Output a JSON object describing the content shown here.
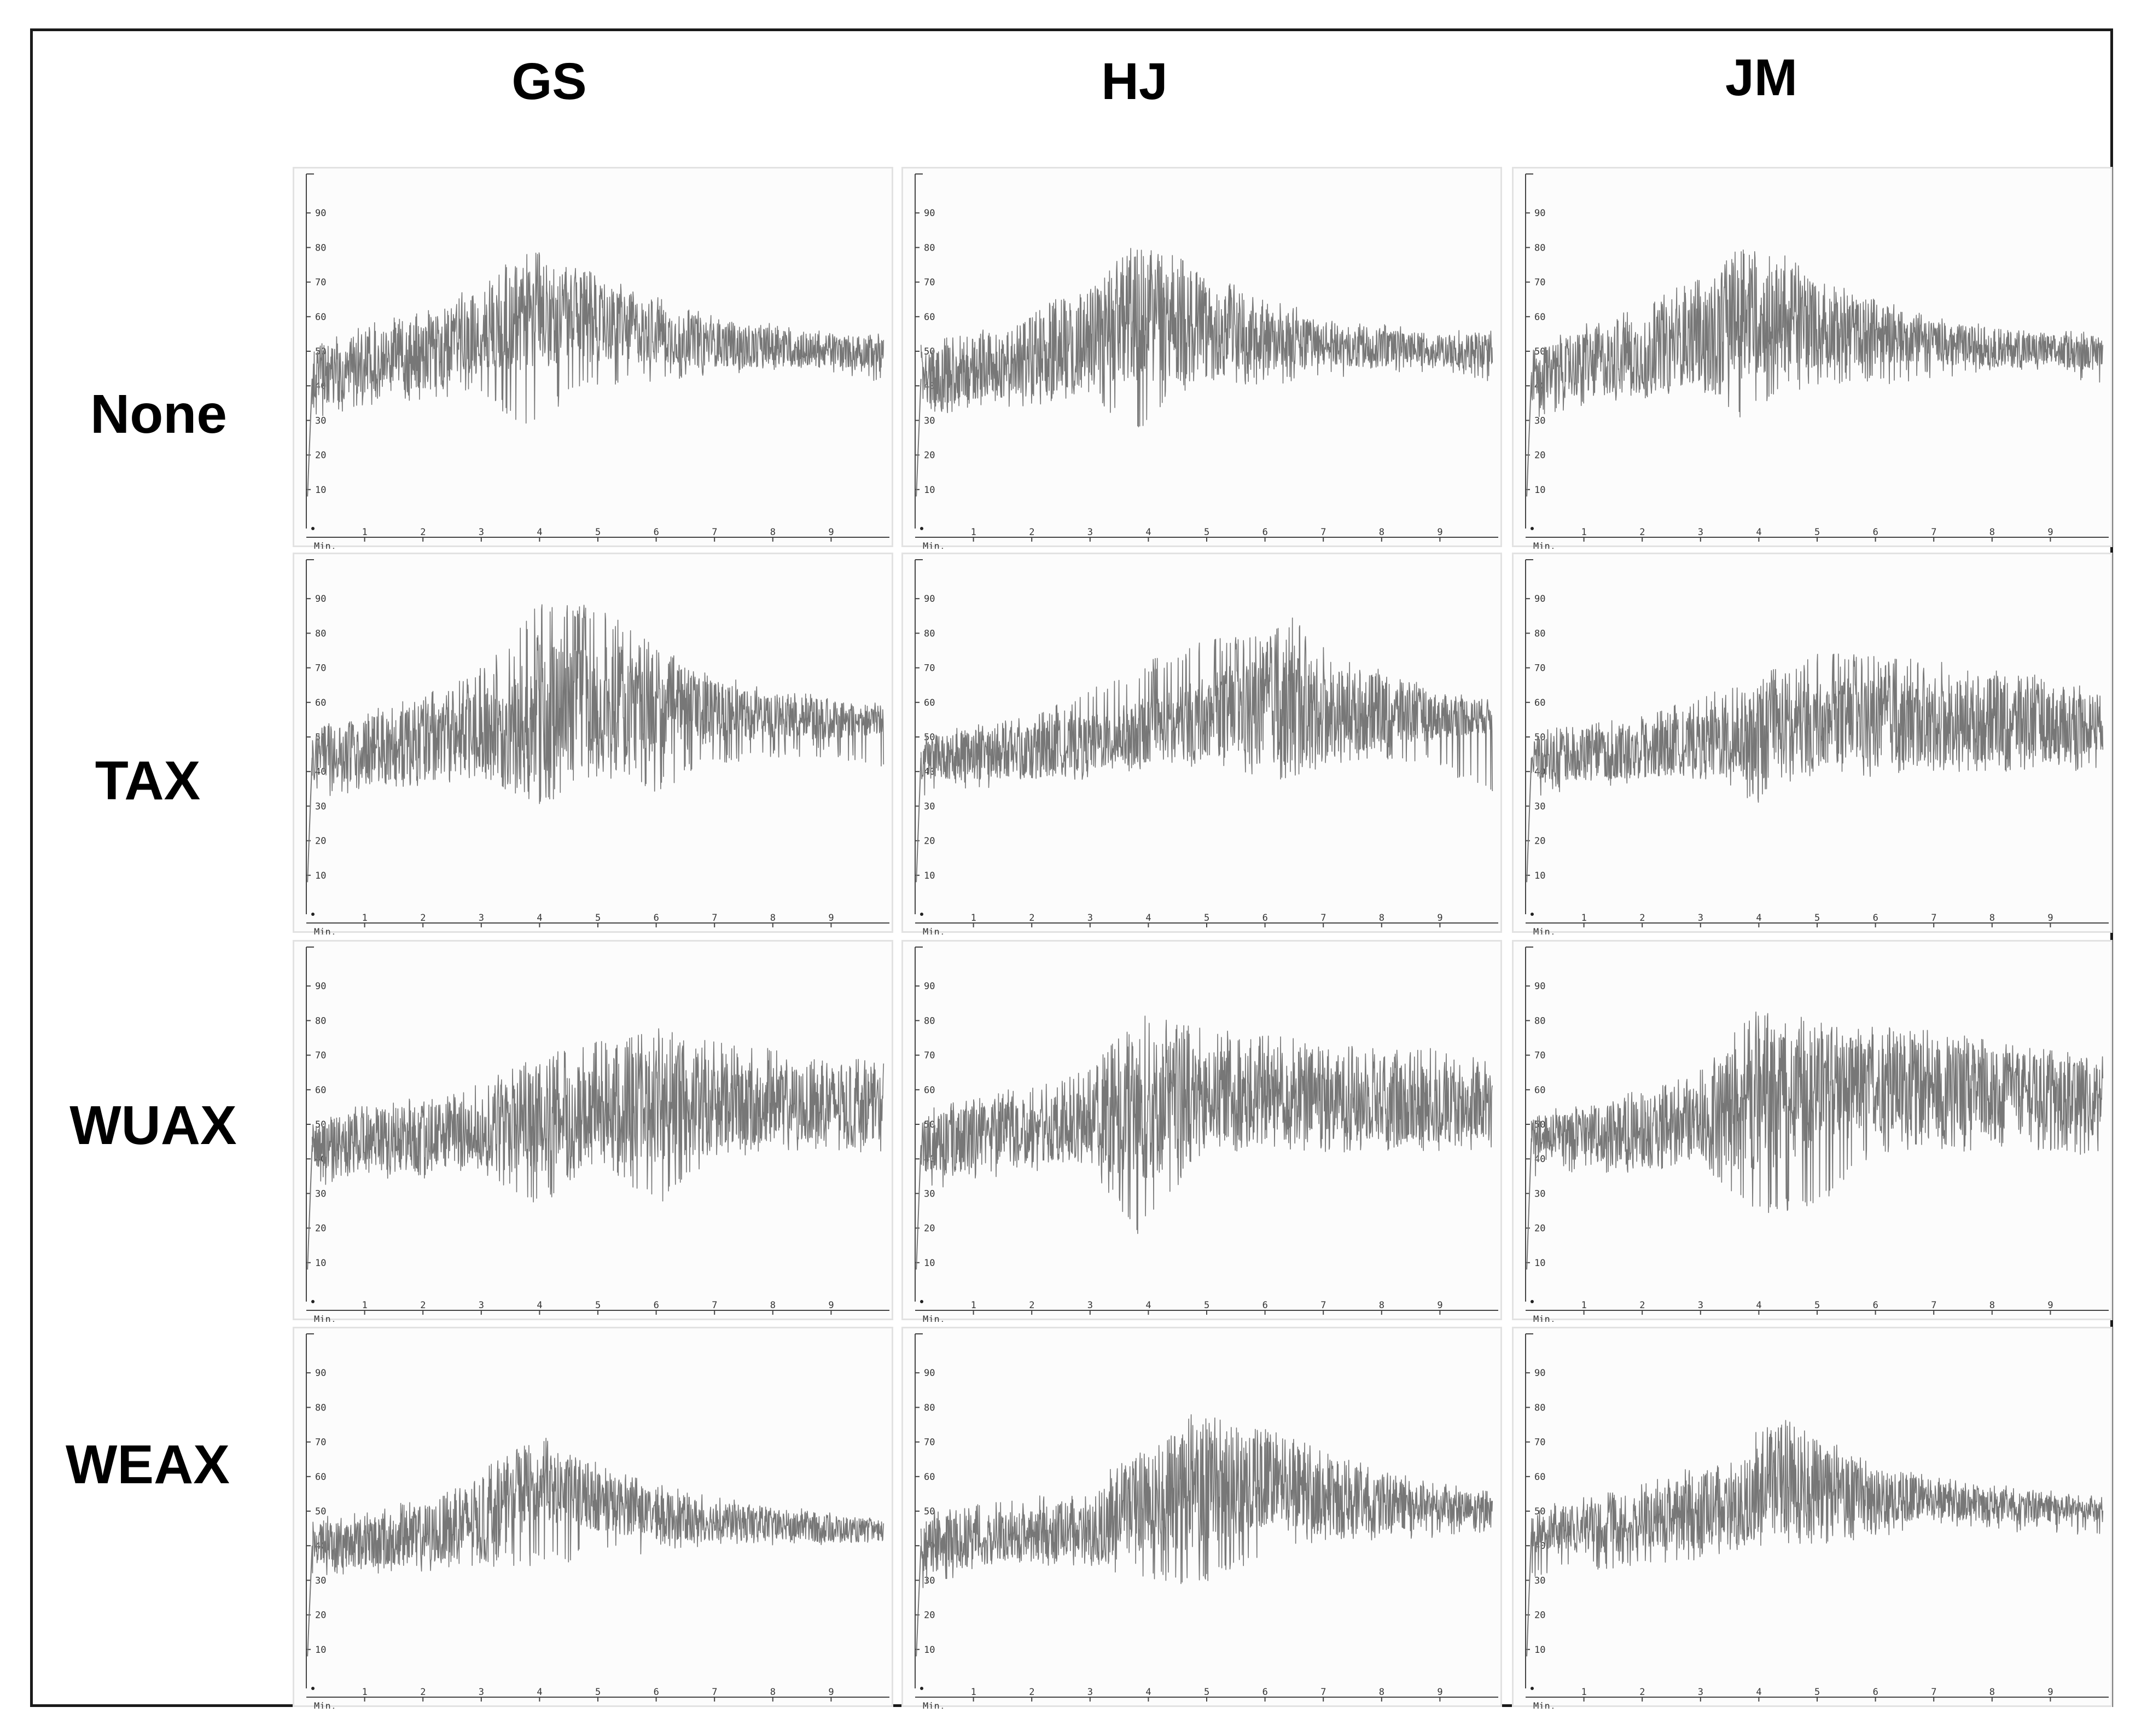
{
  "figure": {
    "columns": [
      "GS",
      "HJ",
      "JM"
    ],
    "rows": [
      "None",
      "TAX",
      "WUAX",
      "WEAX"
    ]
  },
  "chart_data": {
    "type": "line",
    "layout": "4x3 grid of small-multiple panels",
    "xunit_label": "Min.",
    "x_ticks": [
      1,
      2,
      3,
      4,
      5,
      6,
      7,
      8,
      9
    ],
    "y_ticks": [
      10,
      20,
      30,
      40,
      50,
      60,
      70,
      80,
      90
    ],
    "xlim": [
      0,
      10
    ],
    "ylim": [
      0,
      100
    ],
    "line_color": "#777777",
    "panels": [
      {
        "row": "None",
        "column": "GS",
        "x": [
          0.1,
          1,
          2,
          3,
          3.8,
          4.5,
          5,
          6,
          7,
          8,
          9,
          9.9
        ],
        "y_mid": [
          42,
          46,
          49,
          55,
          60,
          60,
          58,
          55,
          52,
          51,
          50,
          50
        ],
        "y_min": [
          30,
          34,
          36,
          38,
          26,
          36,
          40,
          40,
          42,
          44,
          44,
          40
        ],
        "y_max": [
          52,
          58,
          62,
          70,
          80,
          76,
          72,
          66,
          60,
          58,
          56,
          56
        ]
      },
      {
        "row": "None",
        "column": "HJ",
        "x": [
          0.1,
          1,
          2,
          3,
          3.7,
          4.5,
          5,
          6,
          7,
          8,
          9,
          9.9
        ],
        "y_mid": [
          42,
          45,
          48,
          53,
          58,
          58,
          57,
          54,
          52,
          51,
          50,
          50
        ],
        "y_min": [
          30,
          34,
          34,
          38,
          25,
          38,
          40,
          40,
          42,
          44,
          44,
          40
        ],
        "y_max": [
          52,
          56,
          62,
          70,
          80,
          78,
          72,
          66,
          60,
          58,
          56,
          56
        ]
      },
      {
        "row": "None",
        "column": "JM",
        "x": [
          0.1,
          1,
          2,
          3,
          3.7,
          4.5,
          5,
          6,
          7,
          8,
          9,
          9.9
        ],
        "y_mid": [
          43,
          46,
          49,
          54,
          59,
          59,
          57,
          55,
          53,
          51,
          50,
          50
        ],
        "y_min": [
          30,
          34,
          35,
          38,
          30,
          38,
          40,
          40,
          42,
          44,
          44,
          40
        ],
        "y_max": [
          52,
          58,
          63,
          72,
          80,
          78,
          72,
          66,
          60,
          58,
          56,
          56
        ]
      },
      {
        "row": "TAX",
        "column": "GS",
        "x": [
          0.1,
          1,
          2,
          3,
          4,
          5,
          6,
          7,
          8,
          9,
          9.9
        ],
        "y_mid": [
          44,
          46,
          49,
          53,
          58,
          59,
          58,
          57,
          56,
          55,
          55
        ],
        "y_min": [
          32,
          34,
          36,
          38,
          30,
          38,
          34,
          42,
          44,
          44,
          40
        ],
        "y_max": [
          52,
          58,
          62,
          70,
          89,
          88,
          76,
          68,
          64,
          62,
          60
        ]
      },
      {
        "row": "TAX",
        "column": "HJ",
        "x": [
          0.1,
          1,
          2,
          3,
          4,
          5,
          6,
          6.5,
          7,
          8,
          9,
          9.9
        ],
        "y_mid": [
          44,
          45,
          46,
          48,
          52,
          56,
          59,
          60,
          58,
          57,
          56,
          56
        ],
        "y_min": [
          32,
          35,
          36,
          38,
          40,
          42,
          38,
          36,
          42,
          44,
          40,
          34
        ],
        "y_max": [
          52,
          54,
          56,
          64,
          72,
          78,
          80,
          85,
          76,
          70,
          64,
          62
        ]
      },
      {
        "row": "TAX",
        "column": "JM",
        "x": [
          0.1,
          1,
          2,
          3,
          4,
          5,
          6,
          7,
          8,
          9,
          9.9
        ],
        "y_mid": [
          44,
          45,
          46,
          48,
          51,
          54,
          55,
          55,
          55,
          54,
          54
        ],
        "y_min": [
          32,
          36,
          36,
          38,
          30,
          40,
          38,
          40,
          40,
          40,
          40
        ],
        "y_max": [
          52,
          54,
          56,
          62,
          68,
          74,
          74,
          72,
          70,
          68,
          64
        ]
      },
      {
        "row": "WUAX",
        "column": "GS",
        "x": [
          0.1,
          1,
          2,
          3,
          4,
          5,
          6,
          7,
          8,
          9,
          9.9
        ],
        "y_mid": [
          44,
          45,
          46,
          48,
          51,
          54,
          56,
          56,
          56,
          56,
          56
        ],
        "y_min": [
          32,
          34,
          34,
          36,
          26,
          40,
          26,
          40,
          42,
          42,
          42
        ],
        "y_max": [
          52,
          56,
          58,
          62,
          70,
          74,
          78,
          74,
          72,
          70,
          68
        ]
      },
      {
        "row": "WUAX",
        "column": "HJ",
        "x": [
          0.1,
          1,
          2,
          3,
          3.8,
          5,
          6,
          7,
          8,
          9,
          9.9
        ],
        "y_mid": [
          44,
          46,
          48,
          50,
          54,
          58,
          59,
          58,
          57,
          56,
          55
        ],
        "y_min": [
          30,
          34,
          36,
          38,
          18,
          42,
          42,
          42,
          42,
          42,
          42
        ],
        "y_max": [
          54,
          58,
          62,
          66,
          82,
          78,
          76,
          74,
          72,
          72,
          68
        ]
      },
      {
        "row": "WUAX",
        "column": "JM",
        "x": [
          0.1,
          1,
          2,
          3,
          4,
          5,
          6,
          7,
          8,
          9,
          9.9
        ],
        "y_mid": [
          46,
          47,
          48,
          51,
          57,
          60,
          61,
          60,
          59,
          58,
          57
        ],
        "y_min": [
          32,
          36,
          36,
          38,
          24,
          26,
          42,
          42,
          42,
          42,
          40
        ],
        "y_max": [
          54,
          56,
          60,
          66,
          84,
          80,
          78,
          78,
          74,
          72,
          70
        ]
      },
      {
        "row": "WEAX",
        "column": "GS",
        "x": [
          0.1,
          1,
          2,
          3,
          4,
          5,
          6,
          7,
          8,
          9,
          9.9
        ],
        "y_mid": [
          40,
          41,
          43,
          48,
          58,
          53,
          49,
          47,
          46,
          45,
          44
        ],
        "y_min": [
          30,
          32,
          32,
          34,
          34,
          36,
          38,
          40,
          40,
          40,
          40
        ],
        "y_max": [
          48,
          50,
          54,
          62,
          72,
          64,
          58,
          54,
          52,
          50,
          48
        ]
      },
      {
        "row": "WEAX",
        "column": "HJ",
        "x": [
          0.1,
          1,
          2,
          3,
          4,
          4.8,
          6,
          7,
          8,
          9,
          9.9
        ],
        "y_mid": [
          40,
          42,
          43,
          46,
          52,
          56,
          58,
          54,
          52,
          51,
          50
        ],
        "y_min": [
          26,
          32,
          34,
          34,
          30,
          28,
          36,
          40,
          42,
          42,
          42
        ],
        "y_max": [
          50,
          52,
          54,
          60,
          68,
          79,
          74,
          68,
          62,
          58,
          56
        ]
      },
      {
        "row": "WEAX",
        "column": "JM",
        "x": [
          0.1,
          1,
          2,
          3,
          4,
          4.6,
          5,
          6,
          7,
          8,
          9,
          9.9
        ],
        "y_mid": [
          44,
          45,
          47,
          50,
          56,
          58,
          57,
          54,
          53,
          52,
          51,
          50
        ],
        "y_min": [
          30,
          32,
          32,
          36,
          40,
          40,
          40,
          42,
          44,
          44,
          44,
          42
        ],
        "y_max": [
          52,
          54,
          58,
          64,
          74,
          77,
          72,
          64,
          60,
          58,
          56,
          54
        ]
      }
    ]
  }
}
